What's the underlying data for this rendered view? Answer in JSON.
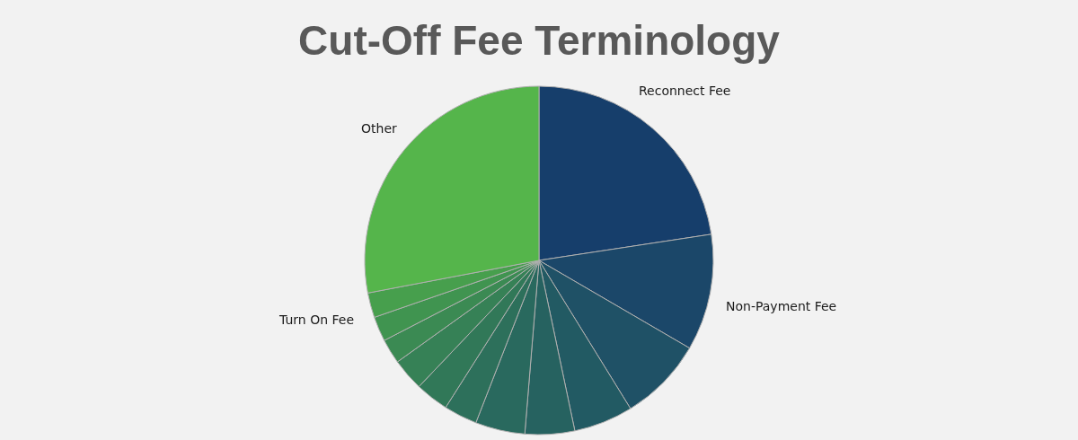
{
  "chart_data": {
    "type": "pie",
    "title": "Cut-Off Fee Terminology",
    "categories": [
      "Reconnect Fee",
      "Non-Payment Fee",
      null,
      null,
      null,
      null,
      null,
      null,
      null,
      null,
      null,
      "Turn On Fee",
      "Other"
    ],
    "values": [
      22.6,
      10.8,
      7.8,
      5.5,
      4.6,
      4.6,
      3.1,
      3.1,
      3.0,
      2.3,
      2.3,
      2.3,
      28.0
    ],
    "colors": [
      "#163e6b",
      "#1b4769",
      "#1f5166",
      "#225a63",
      "#266260",
      "#29695e",
      "#2d705b",
      "#317858",
      "#368156",
      "#3b8a53",
      "#409450",
      "#479f4d",
      "#55b54b"
    ]
  }
}
